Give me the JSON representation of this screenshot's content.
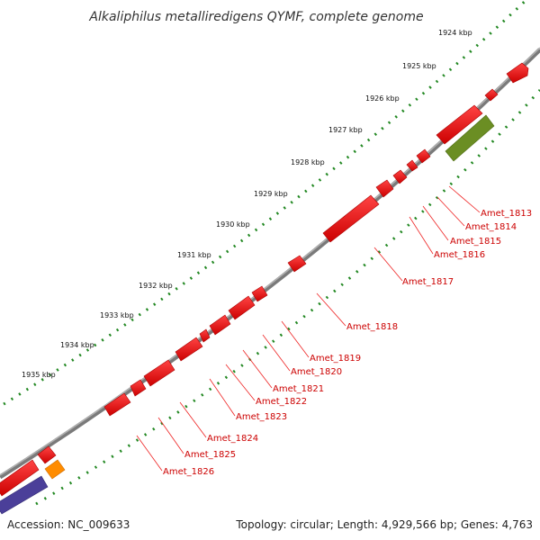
{
  "title": "Alkaliphilus metalliredigens QYMF, complete genome",
  "footer": {
    "accession": "Accession: NC_009633",
    "topology": "Topology: circular; Length: 4,929,566 bp; Genes: 4,763"
  },
  "kbp_labels": [
    "1924 kbp",
    "1925 kbp",
    "1926 kbp",
    "1927 kbp",
    "1928 kbp",
    "1929 kbp",
    "1930 kbp",
    "1931 kbp",
    "1932 kbp",
    "1933 kbp",
    "1934 kbp",
    "1935 kbp"
  ],
  "gene_labels": [
    "Amet_1813",
    "Amet_1814",
    "Amet_1815",
    "Amet_1816",
    "Amet_1817",
    "Amet_1818",
    "Amet_1819",
    "Amet_1820",
    "Amet_1821",
    "Amet_1822",
    "Amet_1823",
    "Amet_1824",
    "Amet_1825",
    "Amet_1826"
  ],
  "colors": {
    "gene": "#ee0000",
    "backbone": "#888888",
    "ticks": "#228822",
    "label": "#cc0000",
    "olive_feature": "#6b8e23",
    "orange_feature": "#ff8c00",
    "purple_feature": "#4b3f99"
  }
}
